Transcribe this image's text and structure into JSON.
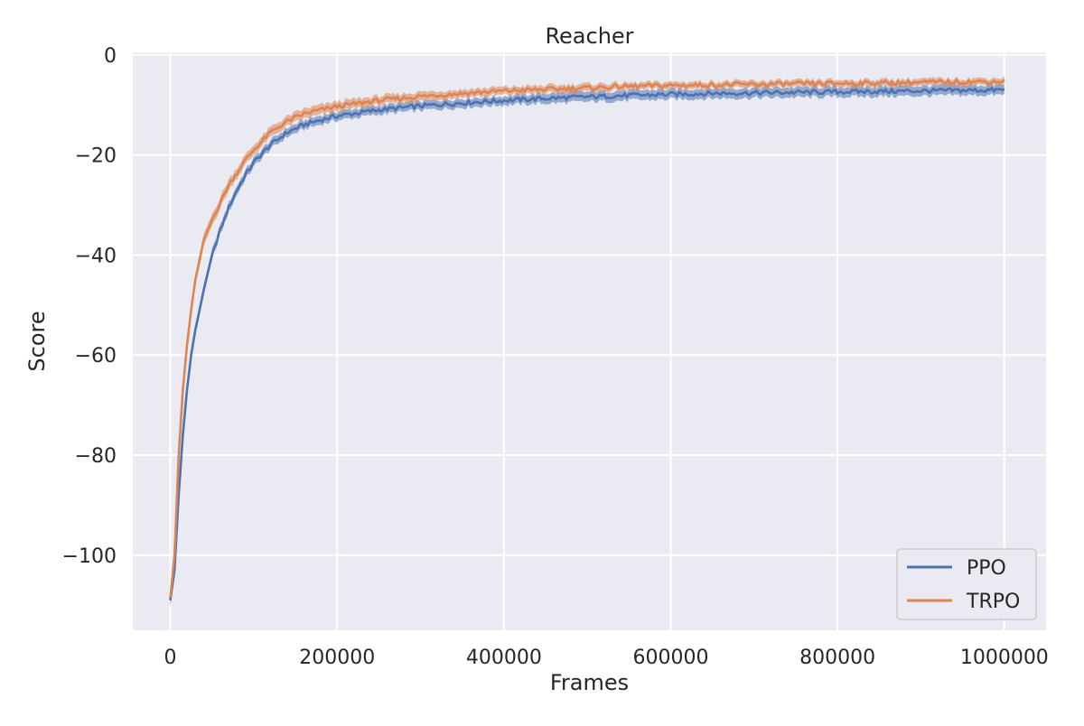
{
  "chart_data": {
    "type": "line",
    "title": "Reacher",
    "xlabel": "Frames",
    "ylabel": "Score",
    "xlim": [
      -45000,
      1050000
    ],
    "ylim": [
      -115,
      0.5
    ],
    "x_ticks": [
      0,
      200000,
      400000,
      600000,
      800000,
      1000000
    ],
    "x_tick_labels": [
      "0",
      "200000",
      "400000",
      "600000",
      "800000",
      "1000000"
    ],
    "y_ticks": [
      0,
      -20,
      -40,
      -60,
      -80,
      -100
    ],
    "y_tick_labels": [
      "0",
      "−20",
      "−40",
      "−60",
      "−80",
      "−100"
    ],
    "grid": true,
    "background": "#eaeaf2",
    "legend_position": "bottom-right",
    "series": [
      {
        "name": "PPO",
        "color": "#4c72b0",
        "x": [
          0,
          5000,
          10000,
          15000,
          20000,
          25000,
          30000,
          40000,
          50000,
          60000,
          70000,
          80000,
          90000,
          100000,
          120000,
          140000,
          160000,
          180000,
          200000,
          250000,
          300000,
          350000,
          400000,
          450000,
          500000,
          550000,
          600000,
          650000,
          700000,
          750000,
          800000,
          850000,
          900000,
          950000,
          1000000
        ],
        "y": [
          -109,
          -103,
          -88,
          -76,
          -67,
          -60,
          -55,
          -47,
          -40,
          -35,
          -30.5,
          -27,
          -24,
          -21.5,
          -18,
          -15.5,
          -14,
          -13,
          -12.2,
          -11,
          -10.2,
          -9.6,
          -9.1,
          -8.7,
          -8.4,
          -8.1,
          -7.9,
          -7.7,
          -7.6,
          -7.5,
          -7.4,
          -7.3,
          -7.2,
          -7.1,
          -7.0
        ],
        "band": [
          1.4,
          1.4,
          1.5,
          1.5,
          1.3,
          1.2,
          1.1,
          1.0,
          1.0,
          0.9,
          0.9,
          0.9,
          0.9,
          0.9,
          0.9,
          0.9,
          0.9,
          0.9,
          0.9,
          0.9,
          0.9,
          0.9,
          0.9,
          1.0,
          1.0,
          1.0,
          1.0,
          1.0,
          1.0,
          1.0,
          1.0,
          1.0,
          1.0,
          1.0,
          1.0
        ]
      },
      {
        "name": "TRPO",
        "color": "#dd8452",
        "x": [
          0,
          5000,
          10000,
          15000,
          20000,
          25000,
          30000,
          40000,
          50000,
          60000,
          70000,
          80000,
          90000,
          100000,
          120000,
          140000,
          160000,
          180000,
          200000,
          250000,
          300000,
          350000,
          400000,
          450000,
          500000,
          550000,
          600000,
          650000,
          700000,
          750000,
          800000,
          850000,
          900000,
          950000,
          1000000
        ],
        "y": [
          -108.5,
          -100,
          -80,
          -67,
          -58,
          -51,
          -45,
          -37,
          -33,
          -29.5,
          -26,
          -23.5,
          -21,
          -19,
          -15.5,
          -13.3,
          -11.8,
          -11,
          -10.3,
          -9.1,
          -8.3,
          -7.7,
          -7.2,
          -6.9,
          -6.6,
          -6.3,
          -6.1,
          -6.0,
          -5.9,
          -5.8,
          -5.7,
          -5.6,
          -5.5,
          -5.4,
          -5.3
        ],
        "band": [
          1.2,
          1.3,
          1.4,
          1.4,
          1.3,
          1.2,
          1.2,
          1.2,
          1.2,
          1.1,
          1.1,
          1.0,
          1.0,
          1.0,
          1.0,
          1.0,
          1.0,
          1.0,
          1.0,
          0.9,
          0.9,
          0.8,
          0.8,
          0.8,
          0.8,
          0.7,
          0.7,
          0.7,
          0.7,
          0.7,
          0.7,
          0.7,
          0.7,
          0.7,
          0.7
        ]
      }
    ]
  }
}
